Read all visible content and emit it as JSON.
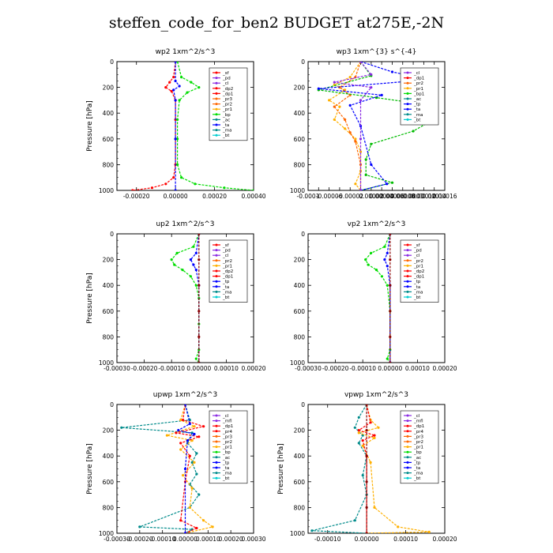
{
  "title": "steffen_code_for_ben2  BUDGET at275E,-2N",
  "chart_data": [
    {
      "type": "line",
      "title": "wp2   1xm^2/s^3",
      "ylabel": "Pressure [hPa]",
      "ylim": [
        1000,
        0
      ],
      "yticks": [
        0,
        200,
        400,
        600,
        800,
        1000
      ],
      "xlim": [
        -0.0003,
        0.0004
      ],
      "xticks": [
        -0.0002,
        0.0,
        0.0002,
        0.0004
      ],
      "xtick_labels": [
        "-0.00020",
        "0.00000",
        "0.00020",
        "0.00040"
      ],
      "legend": [
        "_sf",
        "_pd",
        "_cl",
        "_dp2",
        "_dp1",
        "_pr3",
        "_pr2",
        "_pr1",
        "_bp",
        "_ac",
        "_ta",
        "_ma",
        "_bt"
      ],
      "series": [
        {
          "name": "_dp1",
          "color": "#ff0000",
          "x": [
            0,
            -1e-05,
            -3e-05,
            -5e-05,
            -2e-05,
            0,
            0,
            0,
            0,
            -1e-05,
            -5e-05,
            -0.00012,
            -0.00022
          ],
          "y": [
            0,
            120,
            160,
            200,
            230,
            300,
            450,
            600,
            800,
            900,
            950,
            980,
            1000
          ]
        },
        {
          "name": "_pr1",
          "color": "#00dd00",
          "x": [
            1e-05,
            3e-05,
            8e-05,
            0.00012,
            6e-05,
            2e-05,
            1e-05,
            1e-05,
            1e-05,
            3e-05,
            0.0001,
            0.00025,
            0.0004
          ],
          "y": [
            0,
            120,
            160,
            200,
            240,
            300,
            450,
            600,
            800,
            900,
            950,
            980,
            1000
          ]
        },
        {
          "name": "_bp",
          "color": "#0000ff",
          "x": [
            0,
            0,
            2e-05,
            -1e-05,
            0,
            0,
            0
          ],
          "y": [
            0,
            150,
            190,
            220,
            300,
            600,
            1000
          ]
        }
      ]
    },
    {
      "type": "line",
      "title": "wp3   1xm^{3} s^{-4}",
      "ylabel": "",
      "ylim": [
        1000,
        0
      ],
      "yticks": [
        0,
        200,
        400,
        600,
        800,
        1000
      ],
      "xlim": [
        -0.0001,
        0.00016
      ],
      "xticks": [
        -0.0001,
        -8e-05,
        -6e-05,
        -4e-05,
        -2e-05,
        0.0,
        2e-05,
        4e-05,
        6e-05,
        8e-05,
        0.0001,
        0.00012,
        0.00014,
        0.00016
      ],
      "xtick_labels": [
        "-0.0001",
        "",
        "-0.00006",
        "",
        "-0.00002",
        "",
        "0.00002",
        "0.00004",
        "0.00006",
        "0.00008",
        "0.0001",
        "0.00012",
        "0.00014",
        "0.00016"
      ],
      "legend": [
        "_cl",
        "_dp1",
        "_pr2",
        "_pr1",
        "_bp1",
        "_ac",
        "_tp",
        "_ta",
        "_ma",
        "_bt"
      ],
      "series": [
        {
          "name": "_pr1",
          "color": "#ffb000",
          "x": [
            0,
            -2e-05,
            -5e-05,
            -3e-05,
            -6e-05,
            -4e-05,
            -5e-05,
            -3e-05,
            -1e-05,
            0,
            0,
            -1e-05,
            0
          ],
          "y": [
            0,
            120,
            180,
            220,
            300,
            350,
            450,
            520,
            600,
            700,
            850,
            950,
            1000
          ]
        },
        {
          "name": "_pr2",
          "color": "#ff6600",
          "x": [
            0,
            -1e-05,
            -4e-05,
            -2e-05,
            -5e-05,
            -3e-05,
            -2e-05,
            -1e-05,
            0,
            0
          ],
          "y": [
            0,
            120,
            200,
            260,
            350,
            450,
            550,
            620,
            800,
            1000
          ]
        },
        {
          "name": "_ac",
          "color": "#00bb00",
          "x": [
            0,
            2e-05,
            -8e-05,
            3e-05,
            0.0001,
            8e-05,
            0.00013,
            0.0001,
            2e-05,
            1e-05,
            1e-05,
            6e-05,
            0
          ],
          "y": [
            0,
            110,
            220,
            280,
            320,
            400,
            470,
            540,
            640,
            760,
            880,
            940,
            1000
          ]
        },
        {
          "name": "_bp1",
          "color": "#0000ff",
          "x": [
            0,
            6e-05,
            0.00013,
            -8e-05,
            4e-05,
            -2e-05,
            0,
            2e-05,
            5e-05,
            0
          ],
          "y": [
            0,
            80,
            140,
            210,
            260,
            340,
            500,
            800,
            950,
            1000
          ]
        },
        {
          "name": "_cl",
          "color": "#8a2be2",
          "x": [
            0,
            2e-05,
            -5e-05,
            2e-05,
            0,
            0,
            0
          ],
          "y": [
            0,
            100,
            160,
            200,
            300,
            600,
            1000
          ]
        }
      ]
    },
    {
      "type": "line",
      "title": "up2   1xm^2/s^3",
      "ylabel": "Pressure [hPa]",
      "ylim": [
        1000,
        0
      ],
      "yticks": [
        0,
        200,
        400,
        600,
        800,
        1000
      ],
      "xlim": [
        -0.0003,
        0.0002
      ],
      "xticks": [
        -0.0003,
        -0.0002,
        -0.0001,
        0.0,
        0.0001,
        0.0002
      ],
      "xtick_labels": [
        "-0.00030",
        "-0.00020",
        "-0.00010",
        "0.00000",
        "0.00010",
        "0.00020"
      ],
      "legend": [
        "_sf",
        "_pd",
        "_cl",
        "_pr2",
        "_pr1",
        "_dp2",
        "_dp1",
        "_tp",
        "_ta",
        "_ma",
        "_bt"
      ],
      "series": [
        {
          "name": "_dp1",
          "color": "#00dd00",
          "x": [
            0,
            -2e-05,
            -8e-05,
            -0.0001,
            -9e-05,
            -6e-05,
            -3e-05,
            -1e-05,
            0,
            0,
            0,
            -1e-05,
            0
          ],
          "y": [
            0,
            100,
            150,
            200,
            240,
            280,
            330,
            400,
            500,
            700,
            900,
            970,
            1000
          ]
        },
        {
          "name": "_cl",
          "color": "#0000ff",
          "x": [
            0,
            -1e-05,
            -3e-05,
            -2e-05,
            -1e-05,
            0,
            0
          ],
          "y": [
            0,
            150,
            200,
            240,
            280,
            400,
            1000
          ]
        },
        {
          "name": "_bt",
          "color": "#8b0000",
          "x": [
            0,
            0,
            0,
            0,
            0,
            0
          ],
          "y": [
            0,
            200,
            400,
            600,
            800,
            1000
          ]
        }
      ]
    },
    {
      "type": "line",
      "title": "vp2   1xm^2/s^3",
      "ylabel": "",
      "ylim": [
        1000,
        0
      ],
      "yticks": [
        0,
        200,
        400,
        600,
        800,
        1000
      ],
      "xlim": [
        -0.0003,
        0.0002
      ],
      "xticks": [
        -0.0003,
        -0.0002,
        -0.0001,
        0.0,
        0.0001,
        0.0002
      ],
      "xtick_labels": [
        "-0.00030",
        "-0.00020",
        "-0.00010",
        "0.00000",
        "0.00010",
        "0.00020"
      ],
      "legend": [
        "_sf",
        "_pd",
        "_cl",
        "_pr2",
        "_pr1",
        "_dp2",
        "_dp1",
        "_tp",
        "_ta",
        "_ma",
        "_bt"
      ],
      "series": [
        {
          "name": "_dp1",
          "color": "#00dd00",
          "x": [
            0,
            -2e-05,
            -7e-05,
            -9e-05,
            -8e-05,
            -5e-05,
            -3e-05,
            -1e-05,
            0,
            0,
            -1e-05,
            0
          ],
          "y": [
            0,
            100,
            150,
            200,
            240,
            280,
            330,
            400,
            600,
            900,
            970,
            1000
          ]
        },
        {
          "name": "_cl",
          "color": "#0000ff",
          "x": [
            0,
            -1e-05,
            -2e-05,
            -1e-05,
            0,
            0
          ],
          "y": [
            0,
            150,
            200,
            250,
            400,
            1000
          ]
        },
        {
          "name": "_bt",
          "color": "#8b0000",
          "x": [
            0,
            0,
            0,
            0,
            0,
            0
          ],
          "y": [
            0,
            200,
            400,
            600,
            800,
            1000
          ]
        }
      ]
    },
    {
      "type": "line",
      "title": "upwp   1xm^2/s^3",
      "ylabel": "Pressure [hPa]",
      "ylim": [
        1000,
        0
      ],
      "yticks": [
        0,
        200,
        400,
        600,
        800,
        1000
      ],
      "xlim": [
        -0.0003,
        0.0003
      ],
      "xticks": [
        -0.0003,
        -0.0002,
        -0.0001,
        0.0,
        0.0001,
        0.0002,
        0.0003
      ],
      "xtick_labels": [
        "-0.00030",
        "-0.00020",
        "-0.00010",
        "0.00000",
        "0.00010",
        "0.00020",
        "0.00030"
      ],
      "legend": [
        "_cl",
        "_mfl",
        "_dp1",
        "_pr4",
        "_pr3",
        "_pr2",
        "_pr1",
        "_bp",
        "_ac",
        "_tp",
        "_ta",
        "_ma",
        "_bt"
      ],
      "series": [
        {
          "name": "_ac",
          "color": "#008b8b",
          "x": [
            0,
            2e-05,
            -0.00028,
            3e-05,
            1e-05,
            5e-05,
            3e-05,
            5e-05,
            2e-05,
            6e-05,
            2e-05,
            -0.0002,
            3e-05,
            0
          ],
          "y": [
            0,
            120,
            180,
            220,
            300,
            380,
            450,
            540,
            620,
            700,
            800,
            950,
            970,
            1000
          ]
        },
        {
          "name": "_pr1",
          "color": "#ffb000",
          "x": [
            0,
            -2e-05,
            4e-05,
            -8e-05,
            3e-05,
            -2e-05,
            4e-05,
            -1e-05,
            3e-05,
            2e-05,
            8e-05,
            0.00012,
            0
          ],
          "y": [
            0,
            120,
            170,
            240,
            280,
            350,
            450,
            550,
            650,
            800,
            900,
            950,
            1000
          ]
        },
        {
          "name": "_dp1",
          "color": "#ff0000",
          "x": [
            0,
            -1e-05,
            8e-05,
            -4e-05,
            6e-05,
            -2e-05,
            2e-05,
            0,
            -2e-05,
            5e-05,
            0
          ],
          "y": [
            0,
            120,
            170,
            220,
            250,
            300,
            400,
            600,
            900,
            960,
            1000
          ]
        },
        {
          "name": "_pr4",
          "color": "#0000ff",
          "x": [
            0,
            2e-05,
            -3e-05,
            4e-05,
            1e-05,
            0,
            0
          ],
          "y": [
            0,
            150,
            200,
            230,
            280,
            500,
            1000
          ]
        }
      ]
    },
    {
      "type": "line",
      "title": "vpwp   1xm^2/s^3",
      "ylabel": "Pressure [hPa]",
      "ylim": [
        1000,
        0
      ],
      "yticks": [
        0,
        200,
        400,
        600,
        800,
        1000
      ],
      "xlim": [
        -0.00015,
        0.0002
      ],
      "xticks": [
        -0.0001,
        0.0,
        0.0001,
        0.0002
      ],
      "xtick_labels": [
        "-0.00010",
        "0.00000",
        "0.00010",
        "0.00020"
      ],
      "legend": [
        "_cl",
        "_mfl",
        "_dp1",
        "_pr4",
        "_pr3",
        "_pr2",
        "_pr1",
        "_bp",
        "_ac",
        "_tp",
        "_ta",
        "_ma",
        "_bt"
      ],
      "series": [
        {
          "name": "_ac",
          "color": "#008b8b",
          "x": [
            0,
            -2e-05,
            -3e-05,
            -1e-05,
            -2e-05,
            0,
            -1e-05,
            0,
            -3e-05,
            -0.00014,
            0
          ],
          "y": [
            0,
            100,
            180,
            240,
            300,
            400,
            550,
            700,
            900,
            980,
            1000
          ]
        },
        {
          "name": "_pr1",
          "color": "#ffb000",
          "x": [
            0,
            1e-05,
            3e-05,
            -2e-05,
            2e-05,
            -1e-05,
            1e-05,
            2e-05,
            8e-05,
            0.00016,
            0
          ],
          "y": [
            0,
            120,
            180,
            220,
            260,
            320,
            450,
            800,
            950,
            990,
            1000
          ]
        },
        {
          "name": "_dp1",
          "color": "#ff0000",
          "x": [
            0,
            1e-05,
            -2e-05,
            2e-05,
            -1e-05,
            0,
            0
          ],
          "y": [
            0,
            140,
            200,
            240,
            280,
            400,
            1000
          ]
        },
        {
          "name": "_bt",
          "color": "#8b0000",
          "x": [
            0,
            0,
            0,
            0,
            0,
            0
          ],
          "y": [
            0,
            200,
            400,
            600,
            800,
            1000
          ]
        }
      ]
    }
  ],
  "legend_colors": {
    "_sf": "#ff0000",
    "_pd": "#8a2be2",
    "_cl": "#8a2be2",
    "_mfl": "#8a2be2",
    "_dp2": "#ff0000",
    "_dp1": "#ff0000",
    "_pr4": "#ff0000",
    "_pr3": "#ff6600",
    "_pr2": "#ff6600",
    "_pr1": "#ffb000",
    "_bp": "#00dd00",
    "_bp1": "#00dd00",
    "_ac": "#008b8b",
    "_tp": "#0000ff",
    "_ta": "#0000ff",
    "_ma": "#008b8b",
    "_bt": "#00ced1"
  }
}
